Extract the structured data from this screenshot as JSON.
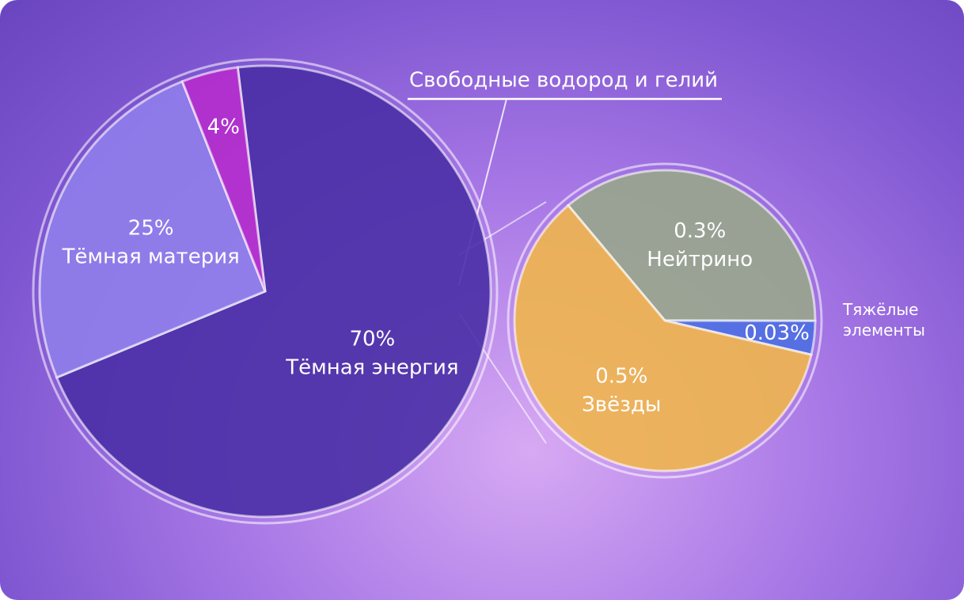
{
  "chart_data": [
    {
      "type": "pie",
      "categories": [
        "Тёмная энергия",
        "Тёмная материя",
        "Свободные водород и гелий"
      ],
      "values": [
        70,
        25,
        4
      ],
      "value_labels": [
        "70%",
        "25%",
        "4%"
      ],
      "colors": [
        "#4a2fa6",
        "#8f7eea",
        "#b52ccc"
      ]
    },
    {
      "type": "pie",
      "categories": [
        "Нейтрино",
        "Тяжёлые элементы",
        "Звёзды"
      ],
      "values": [
        0.3,
        0.03,
        0.5
      ],
      "value_labels": [
        "0.3%",
        "0.03%",
        "0.5%"
      ],
      "colors": [
        "#98a68c",
        "#4d6ee2",
        "#f0b54c"
      ]
    }
  ]
}
